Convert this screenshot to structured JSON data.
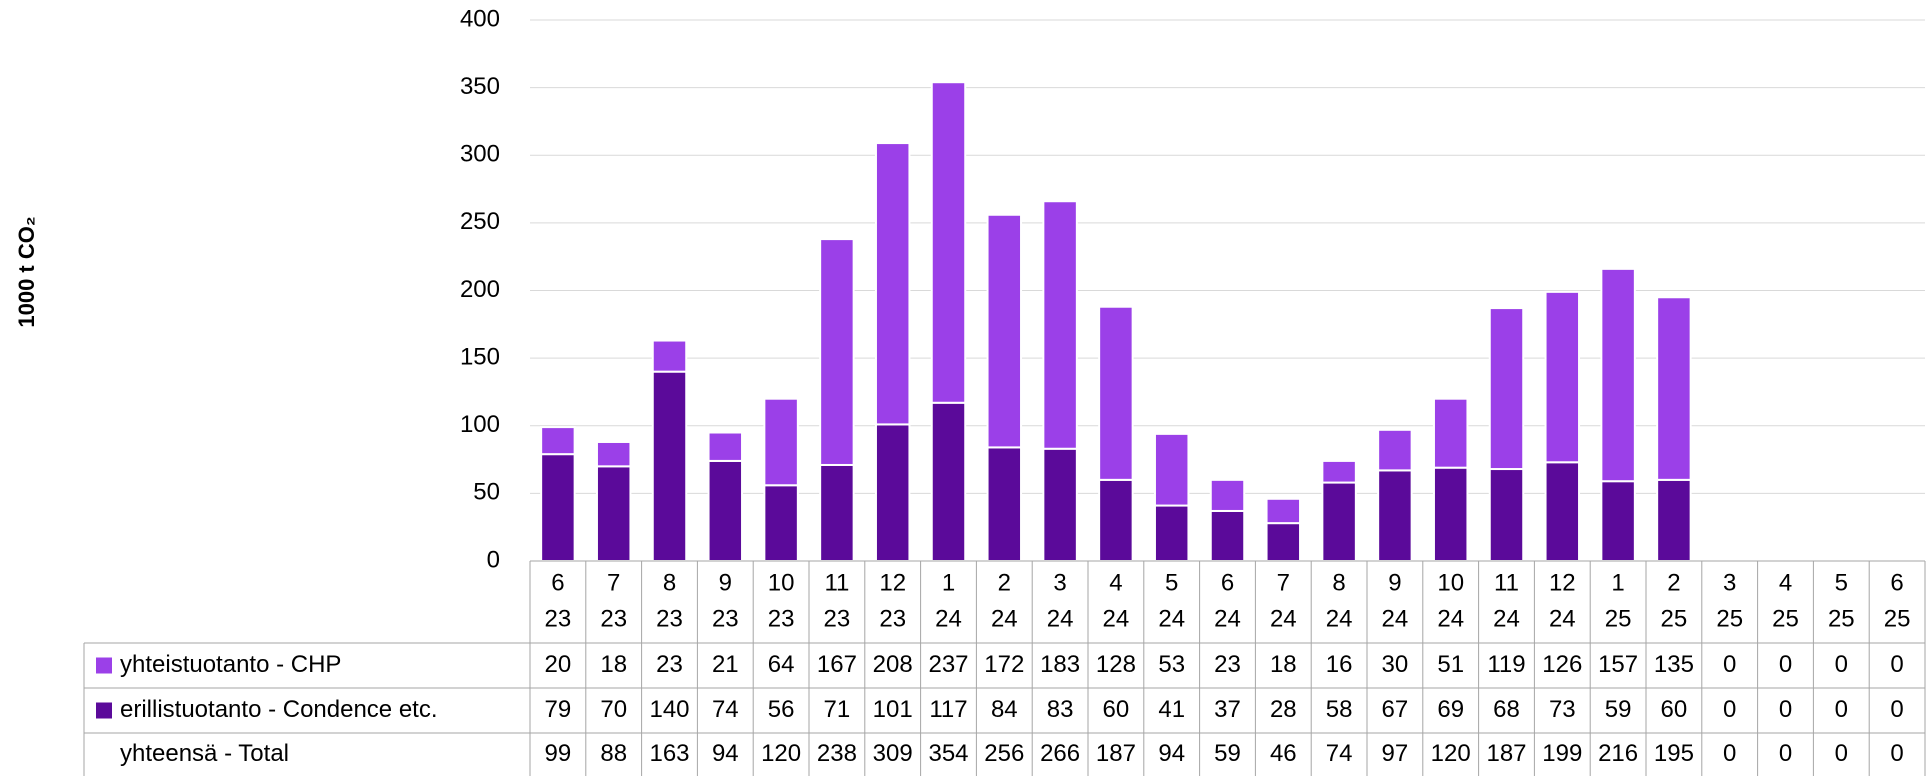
{
  "chart_data": {
    "type": "stacked_bar",
    "ylabel": "1000 t CO₂",
    "categories": [
      [
        "6",
        "23"
      ],
      [
        "7",
        "23"
      ],
      [
        "8",
        "23"
      ],
      [
        "9",
        "23"
      ],
      [
        "10",
        "23"
      ],
      [
        "11",
        "23"
      ],
      [
        "12",
        "23"
      ],
      [
        "1",
        "24"
      ],
      [
        "2",
        "24"
      ],
      [
        "3",
        "24"
      ],
      [
        "4",
        "24"
      ],
      [
        "5",
        "24"
      ],
      [
        "6",
        "24"
      ],
      [
        "7",
        "24"
      ],
      [
        "8",
        "24"
      ],
      [
        "9",
        "24"
      ],
      [
        "10",
        "24"
      ],
      [
        "11",
        "24"
      ],
      [
        "12",
        "24"
      ],
      [
        "1",
        "25"
      ],
      [
        "2",
        "25"
      ],
      [
        "3",
        "25"
      ],
      [
        "4",
        "25"
      ],
      [
        "5",
        "25"
      ],
      [
        "6",
        "25"
      ]
    ],
    "series": [
      {
        "name": "yhteistuotanto - CHP",
        "color": "#9b40e8",
        "values": [
          20,
          18,
          23,
          21,
          64,
          167,
          208,
          237,
          172,
          183,
          128,
          53,
          23,
          18,
          16,
          30,
          51,
          119,
          126,
          157,
          135,
          0,
          0,
          0,
          0
        ]
      },
      {
        "name": "erillistuotanto - Condence etc.",
        "color": "#5b0a9a",
        "values": [
          79,
          70,
          140,
          74,
          56,
          71,
          101,
          117,
          84,
          83,
          60,
          41,
          37,
          28,
          58,
          67,
          69,
          68,
          73,
          59,
          60,
          0,
          0,
          0,
          0
        ]
      }
    ],
    "total": {
      "name": "yhteensä - Total",
      "values": [
        99,
        88,
        163,
        94,
        120,
        238,
        309,
        354,
        256,
        266,
        187,
        94,
        59,
        46,
        74,
        97,
        120,
        187,
        199,
        216,
        195,
        0,
        0,
        0,
        0
      ]
    },
    "ylim": [
      0,
      400
    ],
    "yticks": [
      0,
      50,
      100,
      150,
      200,
      250,
      300,
      350,
      400
    ],
    "grid": true
  }
}
